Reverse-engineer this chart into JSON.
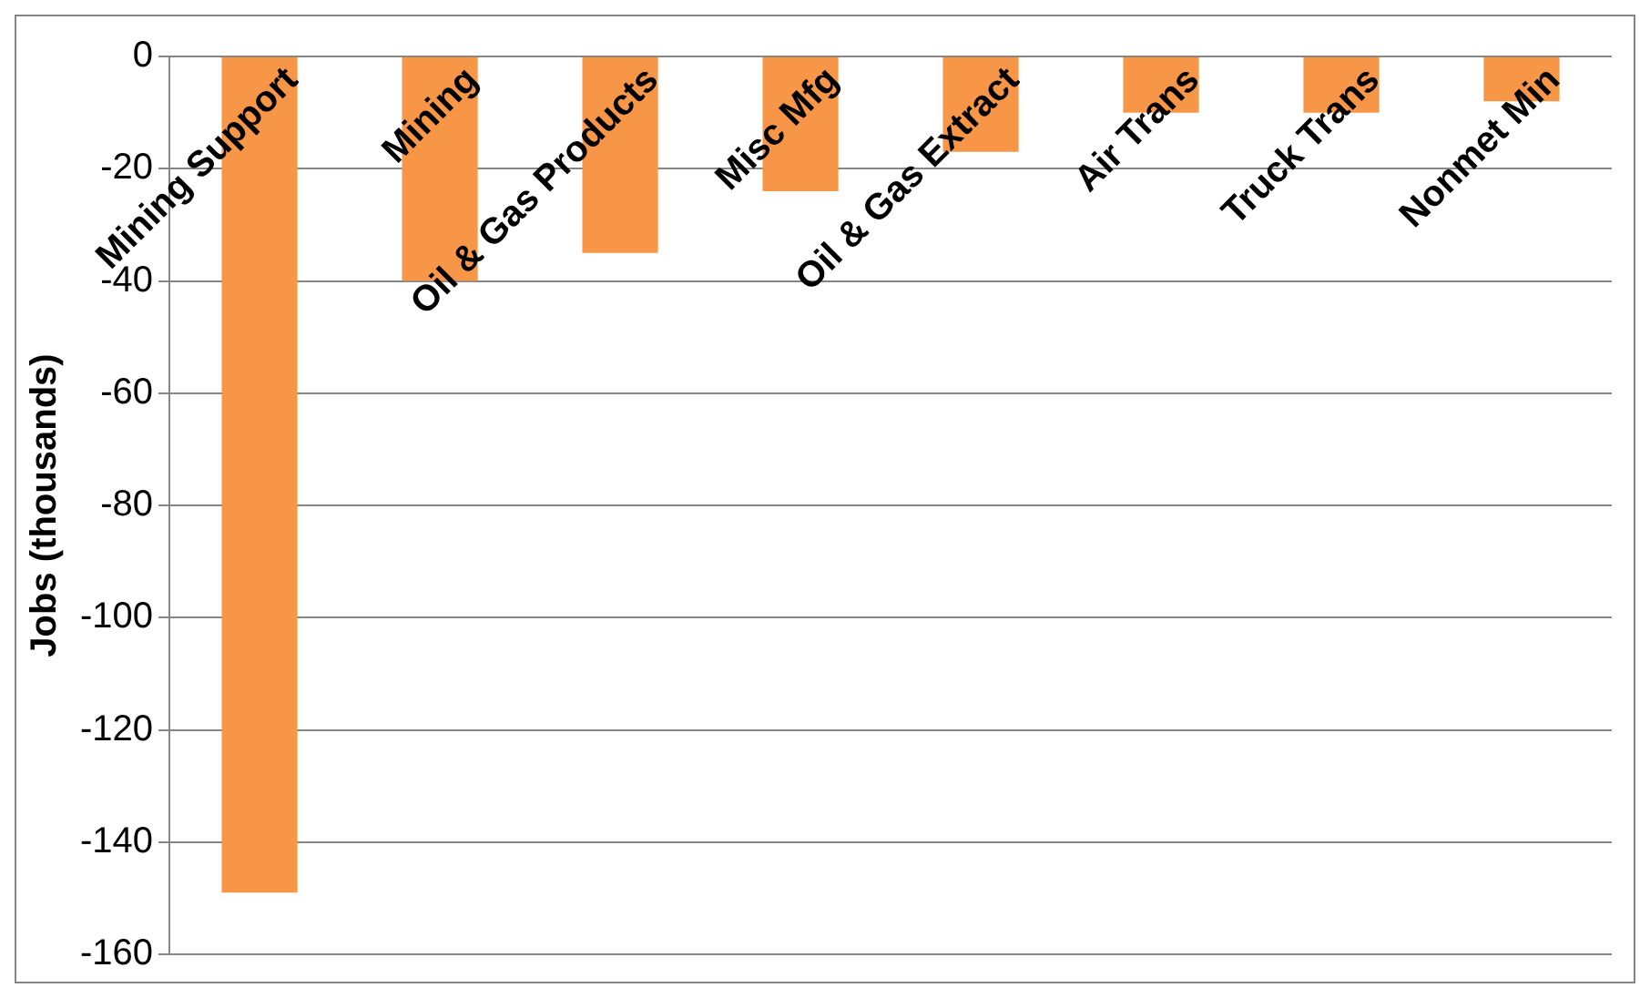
{
  "chart_data": {
    "type": "bar",
    "ylabel": "Jobs (thousands)",
    "categories": [
      "Mining Support",
      "Mining",
      "Oil & Gas Products",
      "Misc Mfg",
      "Oil & Gas Extract",
      "Air Trans",
      "Truck Trans",
      "Nonmet Min"
    ],
    "values": [
      -149,
      -40,
      -35,
      -24,
      -17,
      -10,
      -10,
      -8
    ],
    "color": "#f79646",
    "ylim": [
      -160,
      0
    ],
    "yticks": [
      0,
      -20,
      -40,
      -60,
      -80,
      -100,
      -120,
      -140,
      -160
    ],
    "grid": "y"
  }
}
